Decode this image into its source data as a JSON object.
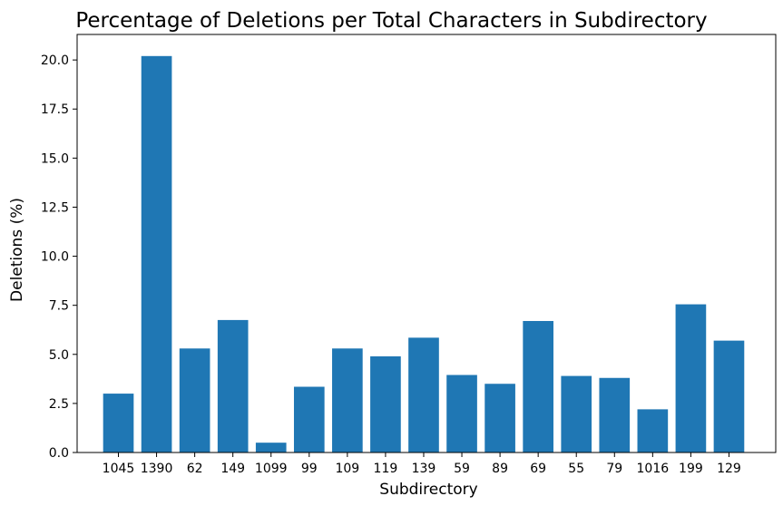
{
  "chart_data": {
    "type": "bar",
    "title": "Percentage of Deletions per Total Characters in Subdirectory",
    "xlabel": "Subdirectory",
    "ylabel": "Deletions (%)",
    "categories": [
      "1045",
      "1390",
      "62",
      "149",
      "1099",
      "99",
      "109",
      "119",
      "139",
      "59",
      "89",
      "69",
      "55",
      "79",
      "1016",
      "199",
      "129"
    ],
    "values": [
      3.0,
      20.2,
      5.3,
      6.75,
      0.5,
      3.35,
      5.3,
      4.9,
      5.85,
      3.95,
      3.5,
      6.7,
      3.9,
      3.8,
      2.2,
      7.55,
      5.7
    ],
    "ylim": [
      0,
      21.3
    ],
    "yticks": [
      "0.0",
      "2.5",
      "5.0",
      "7.5",
      "10.0",
      "12.5",
      "15.0",
      "17.5",
      "20.0"
    ],
    "bar_color": "#1f77b4",
    "grid": false,
    "legend": "none"
  }
}
